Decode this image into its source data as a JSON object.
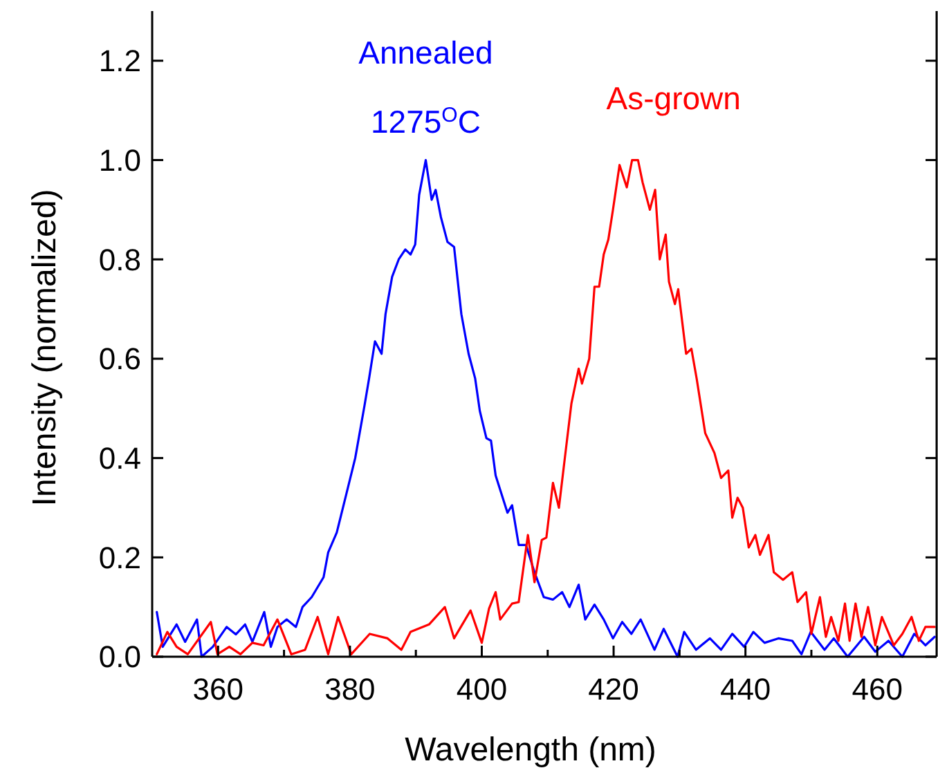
{
  "chart_data": {
    "type": "line",
    "xlabel": "Wavelength (nm)",
    "ylabel": "Intensity (normalized)",
    "xlim": [
      350,
      469
    ],
    "xticks": [
      360,
      380,
      400,
      420,
      440,
      460
    ],
    "ylim": [
      0,
      1.3
    ],
    "yticks": [
      {
        "value": 0,
        "label": "0.0"
      },
      0.2,
      0.4,
      0.6,
      0.8,
      {
        "value": 1,
        "label": "1.0"
      },
      1.2
    ],
    "grid": false,
    "legend": false,
    "marker": "none",
    "line_style": "solid",
    "series": [
      {
        "name": "Annealed\n1275$^{O}$C",
        "color": "#0000ff",
        "x": [
          350.7,
          351.6,
          353.7,
          355,
          356.8,
          357.5,
          359.2,
          361.3,
          362.7,
          364.1,
          365.2,
          367,
          368,
          369,
          370.4,
          371.8,
          372.8,
          374.2,
          376,
          376.7,
          378,
          379.5,
          380.8,
          382.2,
          382.9,
          383.8,
          384.8,
          385.4,
          386.4,
          387.4,
          388.4,
          389.2,
          389.9,
          390.5,
          391.5,
          392.4,
          393,
          393.8,
          394.8,
          395.8,
          396.9,
          398,
          399,
          399.7,
          400.7,
          401.4,
          402.1,
          403.9,
          404.6,
          405.6,
          406.7,
          408,
          409.4,
          410.8,
          412.2,
          413.3,
          414.7,
          415.7,
          417.1,
          418.5,
          419.9,
          421.3,
          422.7,
          424.1,
          426.2,
          427.6,
          429.7,
          430.7,
          432.5,
          434.6,
          436.3,
          438,
          439.8,
          441.2,
          442.9,
          445,
          447.1,
          448.5,
          449.9,
          452,
          453.4,
          455.5,
          458,
          459.7,
          461.7,
          463.8,
          465.6,
          467.3,
          468.7
        ],
        "values": [
          0.09,
          0.02,
          0.065,
          0.03,
          0.075,
          0,
          0.02,
          0.06,
          0.045,
          0.065,
          0.03,
          0.09,
          0.02,
          0.06,
          0.075,
          0.06,
          0.1,
          0.12,
          0.16,
          0.21,
          0.25,
          0.33,
          0.4,
          0.505,
          0.56,
          0.635,
          0.61,
          0.69,
          0.765,
          0.8,
          0.82,
          0.81,
          0.83,
          0.93,
          1,
          0.92,
          0.94,
          0.885,
          0.835,
          0.825,
          0.69,
          0.61,
          0.56,
          0.495,
          0.44,
          0.435,
          0.365,
          0.29,
          0.305,
          0.225,
          0.225,
          0.17,
          0.12,
          0.115,
          0.13,
          0.1,
          0.145,
          0.075,
          0.105,
          0.075,
          0.037,
          0.07,
          0.046,
          0.075,
          0.014,
          0.056,
          0,
          0.05,
          0.014,
          0.037,
          0.014,
          0.046,
          0.02,
          0.05,
          0.028,
          0.037,
          0.032,
          0.005,
          0.05,
          0.014,
          0.037,
          0,
          0.04,
          0.01,
          0.032,
          0,
          0.046,
          0.023,
          0.04
        ]
      },
      {
        "name": "As-grown",
        "color": "#ff0000",
        "x": [
          350.7,
          352.3,
          353.7,
          355.4,
          358.9,
          359.9,
          361.7,
          363.4,
          365.2,
          366.9,
          369,
          371.1,
          373.2,
          375.1,
          376.7,
          378.2,
          380.2,
          383,
          385.7,
          387.8,
          389.2,
          392,
          394.4,
          395.8,
          398.3,
          400,
          401.1,
          402.1,
          402.8,
          404.6,
          405.6,
          407,
          408,
          409.1,
          409.8,
          410.8,
          411.7,
          412.6,
          413.6,
          414.7,
          415.2,
          416.3,
          417.1,
          417.8,
          418.5,
          419.2,
          419.9,
          420.9,
          422,
          422.8,
          423.7,
          424.4,
          425.5,
          426.3,
          427,
          427.9,
          428.4,
          429.3,
          429.8,
          431,
          431.8,
          432.6,
          433.9,
          435.3,
          436.3,
          437.4,
          438,
          438.8,
          439.6,
          440.5,
          441.5,
          442.2,
          443.5,
          444.3,
          445.7,
          447.1,
          447.9,
          449.2,
          450,
          451.3,
          452.2,
          453,
          454.1,
          455.1,
          455.8,
          456.7,
          457.6,
          458.6,
          459.7,
          460.7,
          462.5,
          463.8,
          465.2,
          466.3,
          467.3,
          468.7
        ],
        "values": [
          0.005,
          0.05,
          0.02,
          0.005,
          0.07,
          0.005,
          0.02,
          0.005,
          0.028,
          0.023,
          0.075,
          0.005,
          0.014,
          0.08,
          0.005,
          0.08,
          0.005,
          0.046,
          0.037,
          0.014,
          0.05,
          0.065,
          0.1,
          0.037,
          0.093,
          0.028,
          0.097,
          0.13,
          0.075,
          0.107,
          0.11,
          0.245,
          0.15,
          0.235,
          0.24,
          0.35,
          0.3,
          0.4,
          0.51,
          0.58,
          0.55,
          0.6,
          0.745,
          0.745,
          0.81,
          0.84,
          0.9,
          0.99,
          0.945,
          1,
          1,
          0.955,
          0.9,
          0.94,
          0.8,
          0.85,
          0.755,
          0.71,
          0.74,
          0.61,
          0.62,
          0.56,
          0.45,
          0.41,
          0.36,
          0.375,
          0.28,
          0.32,
          0.3,
          0.22,
          0.245,
          0.205,
          0.245,
          0.17,
          0.155,
          0.17,
          0.11,
          0.13,
          0.046,
          0.12,
          0.04,
          0.08,
          0.032,
          0.107,
          0.032,
          0.107,
          0.04,
          0.1,
          0.023,
          0.08,
          0.023,
          0.046,
          0.08,
          0.032,
          0.06,
          0.06
        ]
      }
    ]
  }
}
